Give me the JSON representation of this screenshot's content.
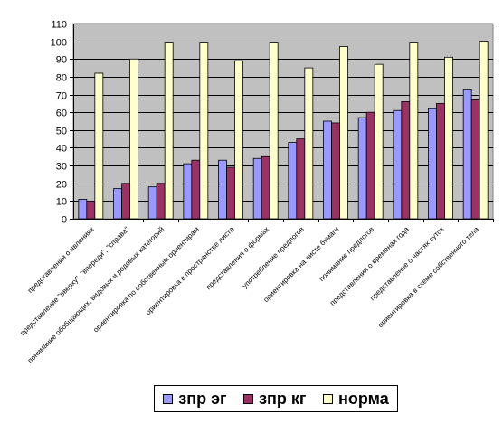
{
  "chart_data": {
    "type": "bar",
    "title": "",
    "xlabel": "",
    "ylabel": "",
    "ylim": [
      0,
      110
    ],
    "yticks": [
      0,
      10,
      20,
      30,
      40,
      50,
      60,
      70,
      80,
      90,
      100,
      110
    ],
    "grid": true,
    "legend_position": "bottom",
    "categories": [
      "представления о явлениях",
      "представление \"вверху\", \"впереди\", \"справа\"",
      "понимание обобщающих, видовых и родовых категорий",
      "ориентировка по собственным ориентирам",
      "ориентировка в пространстве листа",
      "представления о формах",
      "употребление предлогов",
      "ориентировка на листе бумаги",
      "понимание предлогов",
      "представления о временах года",
      "представление о частях суток",
      "ориентировка в схеме собственного тела"
    ],
    "series": [
      {
        "name": "зпр эг",
        "color": "#9999ff",
        "values": [
          11,
          17,
          18,
          31,
          33,
          34,
          43,
          55,
          57,
          61,
          62,
          73
        ]
      },
      {
        "name": "зпр кг",
        "color": "#993366",
        "values": [
          10,
          20,
          20,
          33,
          29,
          35,
          45,
          54,
          60,
          66,
          65,
          67
        ]
      },
      {
        "name": "норма",
        "color": "#ffffcc",
        "values": [
          82,
          90,
          99,
          99,
          89,
          99,
          85,
          97,
          87,
          99,
          91,
          100
        ]
      }
    ],
    "plot_background": "#c0c0c0"
  }
}
